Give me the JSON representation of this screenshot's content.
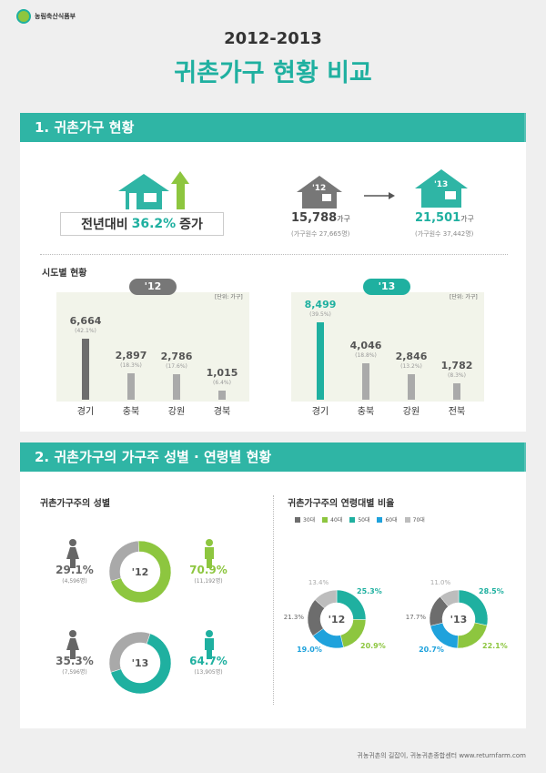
{
  "logo_text": "농림축산식품부",
  "title_years": "2012-2013",
  "title_main": "귀촌가구 현황 비교",
  "section1": {
    "header": "1. 귀촌가구 현황",
    "increase_prefix": "전년대비",
    "increase_value": "36.2%",
    "increase_suffix": "증가",
    "house12_label": "'12",
    "house13_label": "'13",
    "count12": "15,788",
    "count12_unit": "가구",
    "count12_note": "(가구원수 27,665명)",
    "count13": "21,501",
    "count13_unit": "가구",
    "count13_note": "(가구원수 37,442명)",
    "region_title": "시도별 현황",
    "unit_label": "[단위: 가구]"
  },
  "section2": {
    "header": "2. 귀촌가구의 가구주 성별 · 연령별 현황",
    "gender_title": "귀촌가구주의 성별",
    "age_title": "귀촌가구주의 연령대별 비율"
  },
  "footer": "귀농귀촌의 길잡이, 귀농귀촌종합센터 www.returnfarm.com",
  "colors": {
    "teal": "#1fb0a0",
    "green": "#8dc63f",
    "darkgrey": "#6d6d6d",
    "grey": "#aaaaaa",
    "blue": "#1fa2dc",
    "lightgrey": "#bdbdbd"
  },
  "chart_data": [
    {
      "type": "bar",
      "title": "'12",
      "categories": [
        "경기",
        "충북",
        "강원",
        "경북"
      ],
      "values": [
        6664,
        2897,
        2786,
        1015
      ],
      "value_labels": [
        "6,664",
        "2,897",
        "2,786",
        "1,015"
      ],
      "pct_labels": [
        "(42.1%)",
        "(18.3%)",
        "(17.6%)",
        "(6.4%)"
      ]
    },
    {
      "type": "bar",
      "title": "'13",
      "categories": [
        "경기",
        "충북",
        "강원",
        "전북"
      ],
      "values": [
        8499,
        4046,
        2846,
        1782
      ],
      "value_labels": [
        "8,499",
        "4,046",
        "2,846",
        "1,782"
      ],
      "pct_labels": [
        "(39.5%)",
        "(18.8%)",
        "(13.2%)",
        "(8.3%)"
      ]
    },
    {
      "type": "pie",
      "title": "'12",
      "categories": [
        "여",
        "남"
      ],
      "values": [
        29.1,
        70.9
      ],
      "value_labels": [
        "29.1%",
        "70.9%"
      ],
      "count_labels": [
        "(4,596명)",
        "(11,192명)"
      ]
    },
    {
      "type": "pie",
      "title": "'13",
      "categories": [
        "여",
        "남"
      ],
      "values": [
        35.3,
        64.7
      ],
      "value_labels": [
        "35.3%",
        "64.7%"
      ],
      "count_labels": [
        "(7,596명)",
        "(13,905명)"
      ]
    },
    {
      "type": "pie",
      "title": "'12",
      "categories": [
        "30대",
        "40대",
        "50대",
        "60대",
        "70대"
      ],
      "values": [
        21.3,
        20.9,
        25.3,
        19.0,
        13.4
      ],
      "value_labels": [
        "21.3%",
        "20.9%",
        "25.3%",
        "19.0%",
        "13.4%"
      ]
    },
    {
      "type": "pie",
      "title": "'13",
      "categories": [
        "30대",
        "40대",
        "50대",
        "60대",
        "70대"
      ],
      "values": [
        17.7,
        22.1,
        28.5,
        20.7,
        11.0
      ],
      "value_labels": [
        "17.7%",
        "22.1%",
        "28.5%",
        "20.7%",
        "11.0%"
      ]
    }
  ]
}
